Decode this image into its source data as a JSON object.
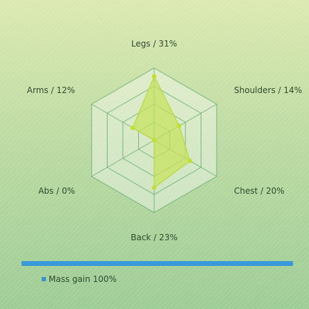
{
  "chart_data": {
    "type": "radar",
    "title": "",
    "categories": [
      "Legs / 31%",
      "Shoulders / 14%",
      "Chest / 20%",
      "Back / 23%",
      "Abs / 0%",
      "Arms / 12%"
    ],
    "series": [
      {
        "name": "Mass gain 100%",
        "values": [
          31,
          14,
          20,
          23,
          0,
          12
        ]
      }
    ],
    "rmax": 35,
    "rings": 4,
    "legend_position": "bottom-left",
    "colors": {
      "fill": "#c6e35a",
      "stroke": "#b5d93a",
      "point": "#c2df2e",
      "grid": "#5aa46a",
      "legend_swatch": "#3a8fd0",
      "divider": "#3a9ad9"
    }
  },
  "legend": {
    "label": "Mass gain 100%"
  }
}
